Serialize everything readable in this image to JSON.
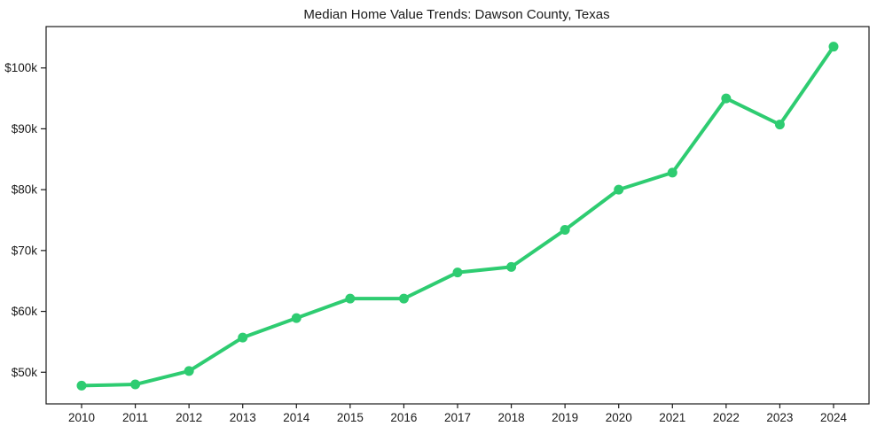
{
  "chart_data": {
    "type": "line",
    "title": "Median Home Value Trends: Dawson County, Texas",
    "categories": [
      "2010",
      "2011",
      "2012",
      "2013",
      "2014",
      "2015",
      "2016",
      "2017",
      "2018",
      "2019",
      "2020",
      "2021",
      "2022",
      "2023",
      "2024"
    ],
    "values": [
      47800,
      48000,
      50200,
      55700,
      58900,
      62100,
      62100,
      66400,
      67300,
      73400,
      80000,
      82800,
      95000,
      90700,
      103500
    ],
    "y_ticks": [
      {
        "value": 50000,
        "label": "$50k"
      },
      {
        "value": 60000,
        "label": "$60k"
      },
      {
        "value": 70000,
        "label": "$70k"
      },
      {
        "value": 80000,
        "label": "$80k"
      },
      {
        "value": 90000,
        "label": "$90k"
      },
      {
        "value": 100000,
        "label": "$100k"
      }
    ],
    "ylim": [
      44800,
      106800
    ],
    "xlabel": "",
    "ylabel": "",
    "grid": false,
    "legend_position": "none",
    "marker": "circle",
    "line_color": "#2ecc71",
    "axis_color": "#1a1a1a",
    "text_color": "#1a1a1a",
    "background_color": "#ffffff"
  }
}
